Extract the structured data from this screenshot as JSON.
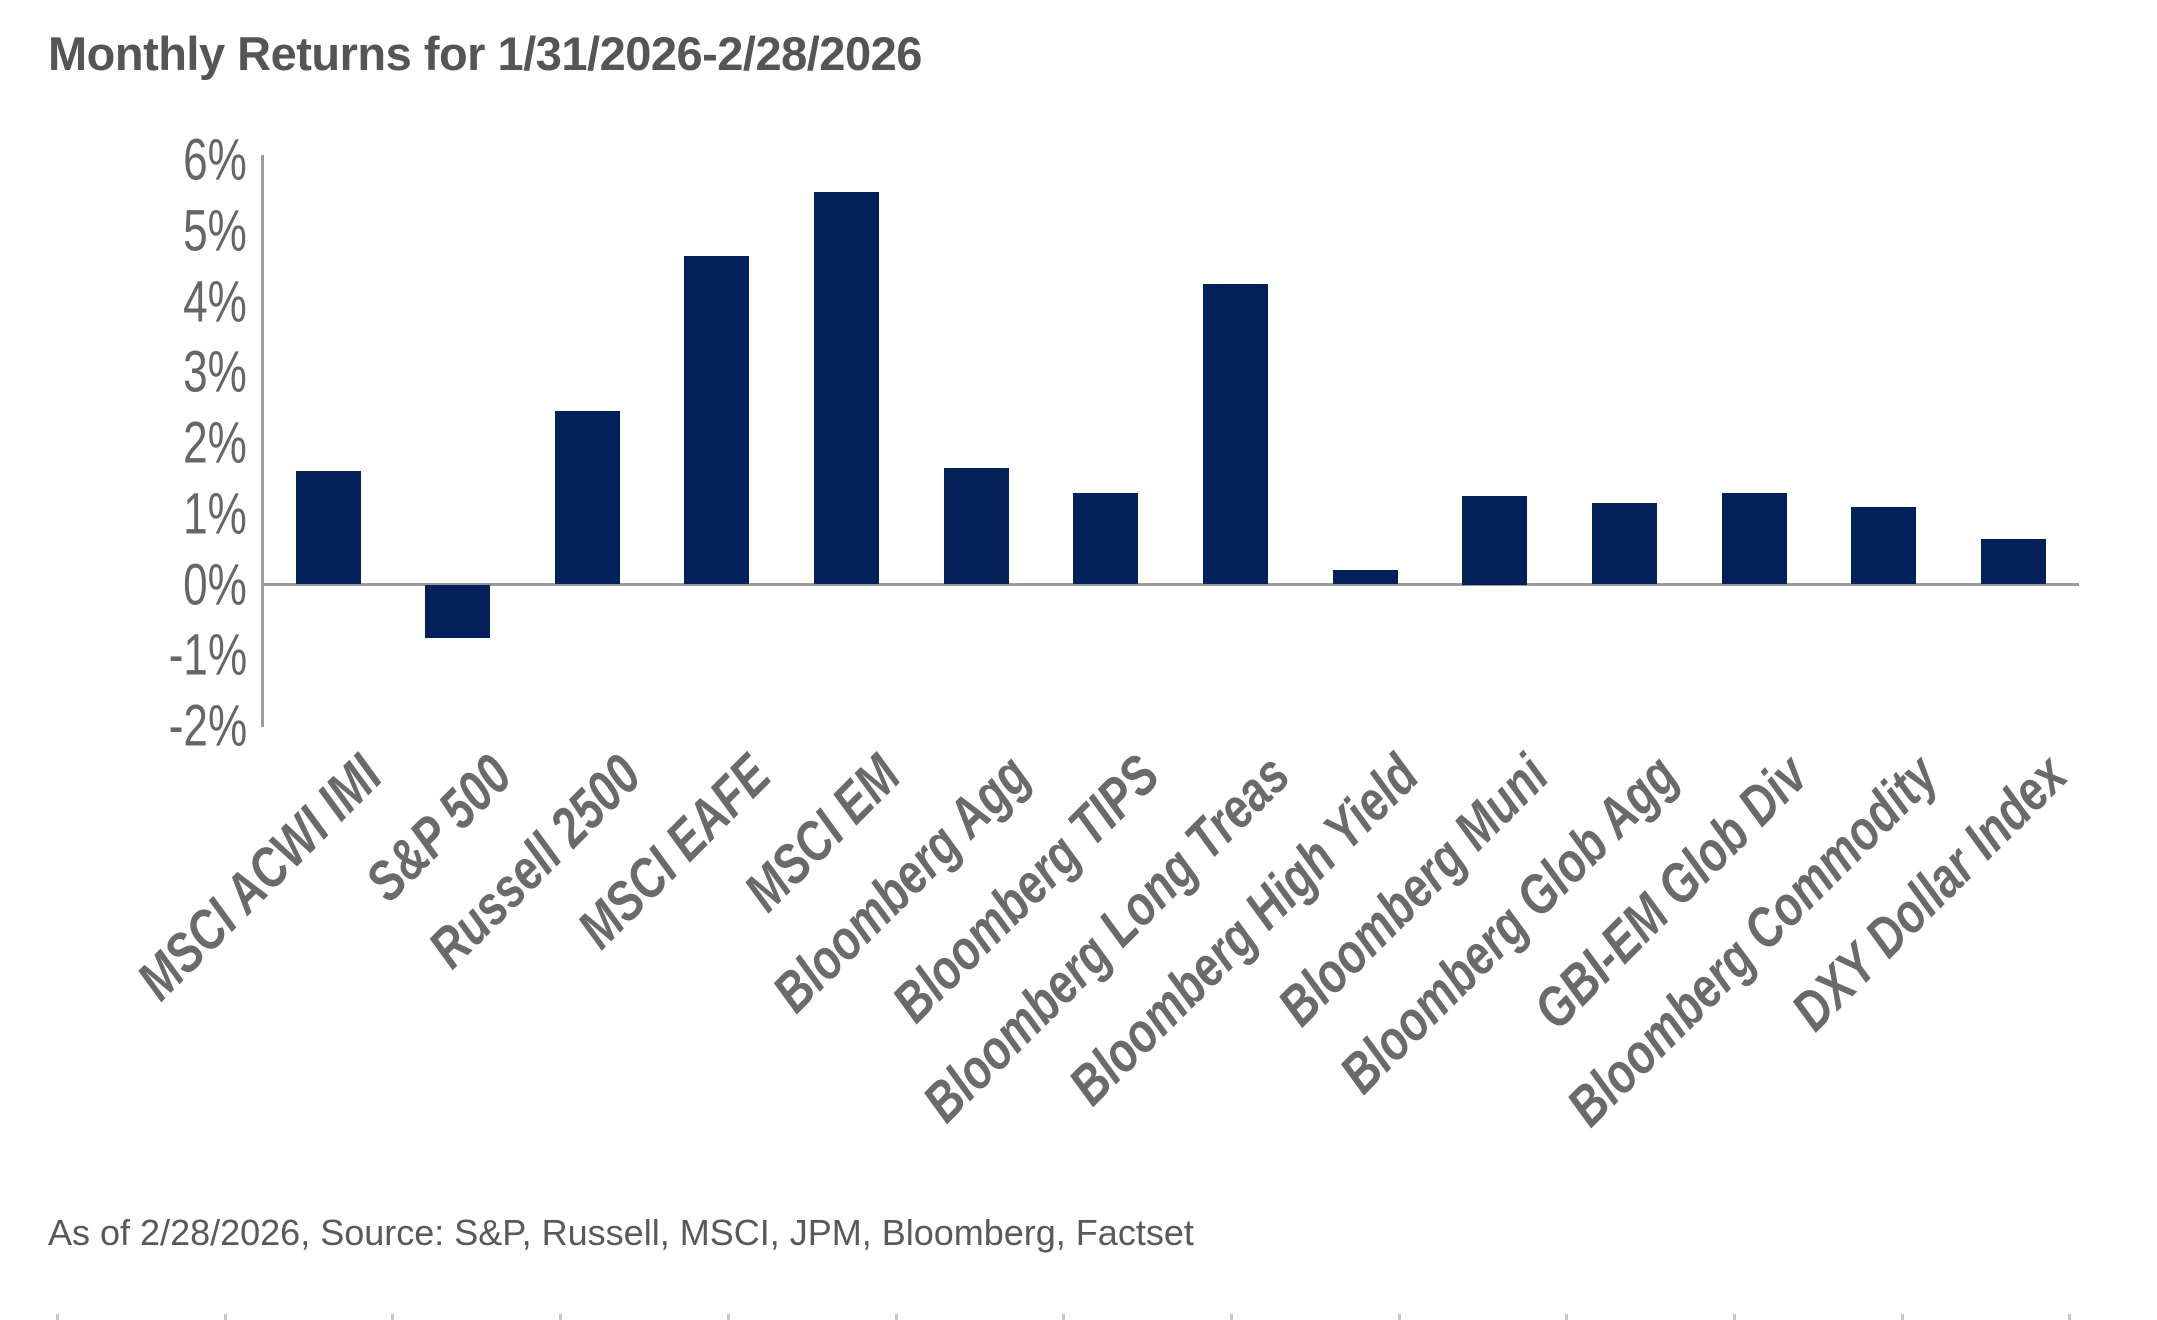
{
  "header": {
    "title": "Monthly Returns for 1/31/2026-2/28/2026"
  },
  "footer": {
    "text": "As of 2/28/2026, Source: S&P, Russell, MSCI, JPM, Bloomberg, Factset"
  },
  "colors": {
    "bar": "#02205a",
    "axis_line": "#9b9b9b",
    "title_text": "#555555",
    "axis_text": "#666666",
    "footer_text": "#595959"
  },
  "chart_data": {
    "type": "bar",
    "title": "Monthly Returns for 1/31/2026-2/28/2026",
    "categories": [
      "MSCI ACWI IMI",
      "S&P 500",
      "Russell 2500",
      "MSCI EAFE",
      "MSCI EM",
      "Bloomberg Agg",
      "Bloomberg TIPS",
      "Bloomberg Long Treas",
      "Bloomberg High Yield",
      "Bloomberg Muni",
      "Bloomberg Glob Agg",
      "GBI-EM Glob Div",
      "Bloomberg Commodity",
      "DXY Dollar Index"
    ],
    "values": [
      1.6,
      -0.75,
      2.45,
      4.65,
      5.55,
      1.65,
      1.3,
      4.25,
      0.2,
      1.25,
      1.15,
      1.3,
      1.1,
      0.65
    ],
    "unit": "%",
    "xlabel": "",
    "ylabel": "",
    "ylim": [
      -2,
      6
    ],
    "ytick_values": [
      6,
      5,
      4,
      3,
      2,
      1,
      0,
      -1,
      -2
    ],
    "ytick_labels": [
      "6%",
      "5%",
      "4%",
      "3%",
      "2%",
      "1%",
      "0%",
      "-1%",
      "-2%"
    ],
    "grid": false,
    "legend_position": "none",
    "bar_color": "#02205a"
  }
}
